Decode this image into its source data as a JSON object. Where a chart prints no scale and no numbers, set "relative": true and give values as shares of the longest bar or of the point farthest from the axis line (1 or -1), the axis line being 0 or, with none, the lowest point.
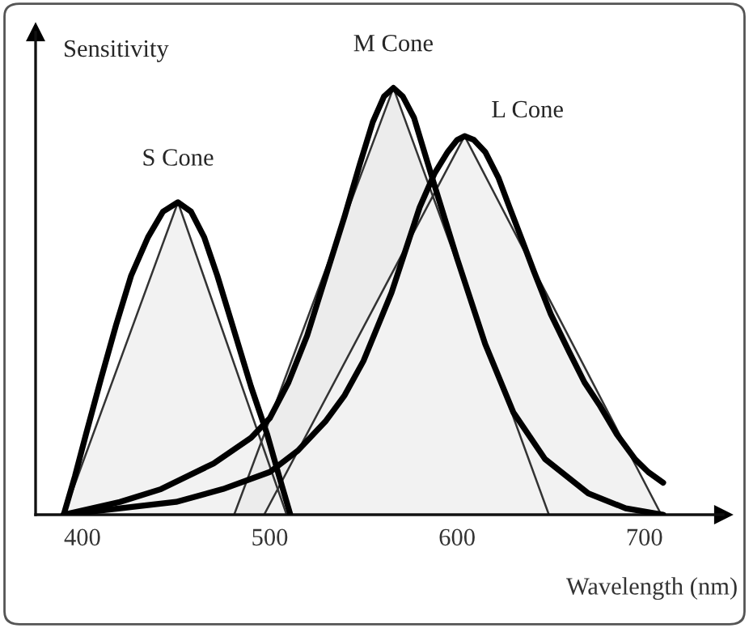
{
  "chart_data": {
    "type": "line",
    "relative": true,
    "xlabel": "Wavelength (nm)",
    "ylabel": "Sensitivity",
    "xlim": [
      375,
      742
    ],
    "xticks": [
      400,
      500,
      600,
      700
    ],
    "grid": false,
    "legend": false,
    "marker": "none",
    "line_style": "solid",
    "series": [
      {
        "type": "area",
        "color": "#f2f2f2",
        "x": [
          390,
          451,
          509
        ],
        "values": [
          0,
          0.732,
          0
        ]
      },
      {
        "type": "area",
        "color": "#ececec",
        "x": [
          481,
          566,
          649
        ],
        "values": [
          0,
          1,
          0
        ]
      },
      {
        "type": "area",
        "color": "#f2f2f2",
        "x": [
          497,
          604,
          709
        ],
        "values": [
          0,
          0.887,
          0
        ]
      },
      {
        "name": "S Cone",
        "color": "#000000",
        "x": [
          390,
          396,
          402,
          410,
          418,
          426,
          435,
          443,
          451,
          458,
          465,
          472,
          480,
          490,
          498.5,
          505,
          511
        ],
        "values": [
          0,
          0.09,
          0.19,
          0.32,
          0.445,
          0.56,
          0.65,
          0.71,
          0.732,
          0.71,
          0.65,
          0.56,
          0.445,
          0.3,
          0.19,
          0.09,
          0
        ]
      },
      {
        "name": "M Cone",
        "color": "#000000",
        "x": [
          390,
          420,
          442,
          470,
          490,
          500,
          510,
          520,
          530,
          540,
          548,
          555,
          561,
          566,
          571,
          577,
          587,
          600,
          615,
          630,
          647,
          670,
          690,
          710
        ],
        "values": [
          0,
          0.03,
          0.06,
          0.12,
          0.18,
          0.226,
          0.31,
          0.42,
          0.56,
          0.7,
          0.82,
          0.92,
          0.98,
          1,
          0.98,
          0.93,
          0.785,
          0.6,
          0.4,
          0.24,
          0.13,
          0.05,
          0.015,
          0
        ]
      },
      {
        "name": "L Cone",
        "color": "#000000",
        "x": [
          390,
          420,
          450,
          475,
          500,
          515,
          530,
          540,
          550,
          565,
          580,
          588,
          595,
          600,
          604,
          609,
          615,
          622,
          628,
          635,
          641,
          650,
          660,
          668,
          676,
          685,
          695,
          702,
          710
        ],
        "values": [
          0,
          0.015,
          0.03,
          0.06,
          0.1,
          0.15,
          0.22,
          0.28,
          0.36,
          0.52,
          0.72,
          0.8,
          0.85,
          0.878,
          0.887,
          0.878,
          0.85,
          0.79,
          0.72,
          0.64,
          0.57,
          0.47,
          0.38,
          0.31,
          0.257,
          0.19,
          0.13,
          0.1,
          0.075
        ]
      }
    ]
  }
}
